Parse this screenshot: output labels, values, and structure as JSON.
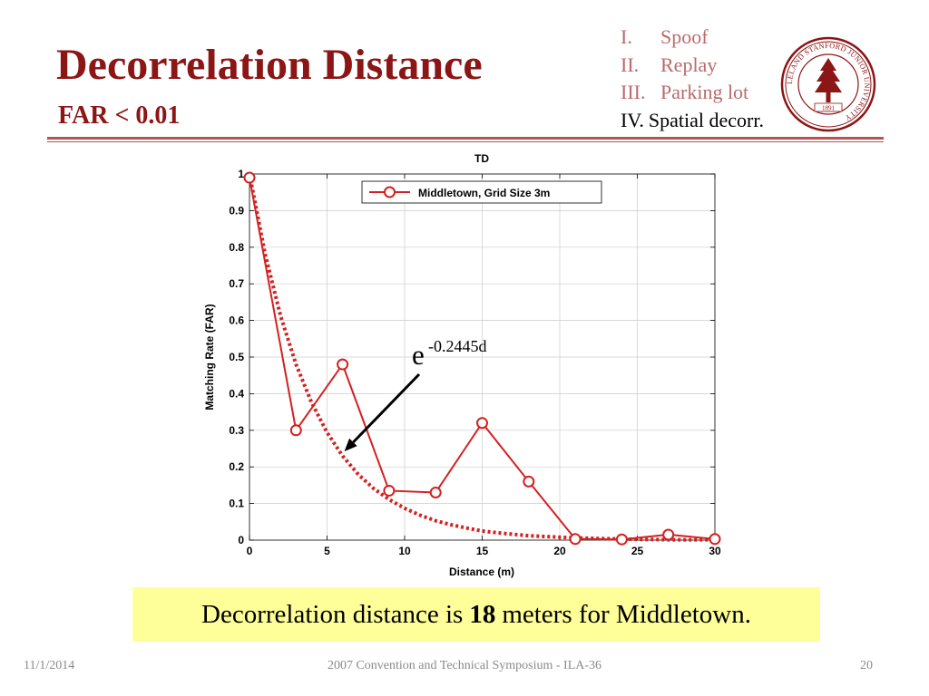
{
  "slide": {
    "title": "Decorrelation Distance",
    "subtitle": "FAR < 0.01",
    "agenda": [
      {
        "num": "I.",
        "text": "Spoof",
        "active": false
      },
      {
        "num": "II.",
        "text": "Replay",
        "active": false
      },
      {
        "num": "III.",
        "text": "Parking lot",
        "active": false
      },
      {
        "num": "IV.",
        "text": "Spatial decorr.",
        "active": true
      }
    ],
    "seal": {
      "ring_text": "LELAND STANFORD JUNIOR UNIVERSITY",
      "year": "1891"
    },
    "callout": {
      "prefix": "Decorrelation distance is",
      "value": "18",
      "suffix": "meters for Middletown."
    },
    "footer": {
      "date": "11/1/2014",
      "center": "2007 Convention and Technical Symposium - ILA-36",
      "page": "20"
    }
  },
  "colors": {
    "brand": "#8c1515",
    "agenda_dim": "#b96a6a",
    "rule": "#c0504d",
    "series": "#d42020",
    "callout_bg": "#ffff99"
  },
  "chart_data": {
    "type": "line",
    "title": "TD",
    "xlabel": "Distance (m)",
    "ylabel": "Matching Rate (FAR)",
    "xlim": [
      0,
      30
    ],
    "ylim": [
      0,
      1
    ],
    "xticks": [
      0,
      5,
      10,
      15,
      20,
      25,
      30
    ],
    "yticks": [
      0,
      0.1,
      0.2,
      0.3,
      0.4,
      0.5,
      0.6,
      0.7,
      0.8,
      0.9,
      1
    ],
    "grid": true,
    "legend_position": "top-right",
    "series": [
      {
        "name": "Middletown, Grid Size 3m",
        "style": "solid-circle-markers",
        "color": "#d42020",
        "x": [
          0,
          3,
          6,
          9,
          12,
          15,
          18,
          21,
          24,
          27,
          30
        ],
        "y": [
          0.99,
          0.3,
          0.48,
          0.135,
          0.13,
          0.32,
          0.16,
          0.003,
          0.002,
          0.015,
          0.003
        ]
      },
      {
        "style": "dotted-fit",
        "color": "#d42020",
        "x": [
          0,
          1,
          2,
          3,
          4,
          5,
          6,
          7,
          8,
          9,
          10,
          11,
          12,
          13,
          14,
          15,
          16,
          17,
          18,
          19,
          20,
          21,
          22,
          23,
          24,
          25,
          26,
          27,
          28,
          29,
          30
        ],
        "y": [
          1,
          0.783,
          0.613,
          0.48,
          0.376,
          0.294,
          0.23,
          0.18,
          0.141,
          0.111,
          0.087,
          0.068,
          0.053,
          0.042,
          0.033,
          0.025,
          0.02,
          0.016,
          0.012,
          0.01,
          0.008,
          0.006,
          0.005,
          0.004,
          0.003,
          0.002,
          0.002,
          0.001,
          0.001,
          0.001,
          0.001
        ]
      }
    ],
    "annotation": {
      "base": "e",
      "exponent": "-0.2445d",
      "arrow_to": {
        "x": 6,
        "y": 0.24
      }
    }
  }
}
